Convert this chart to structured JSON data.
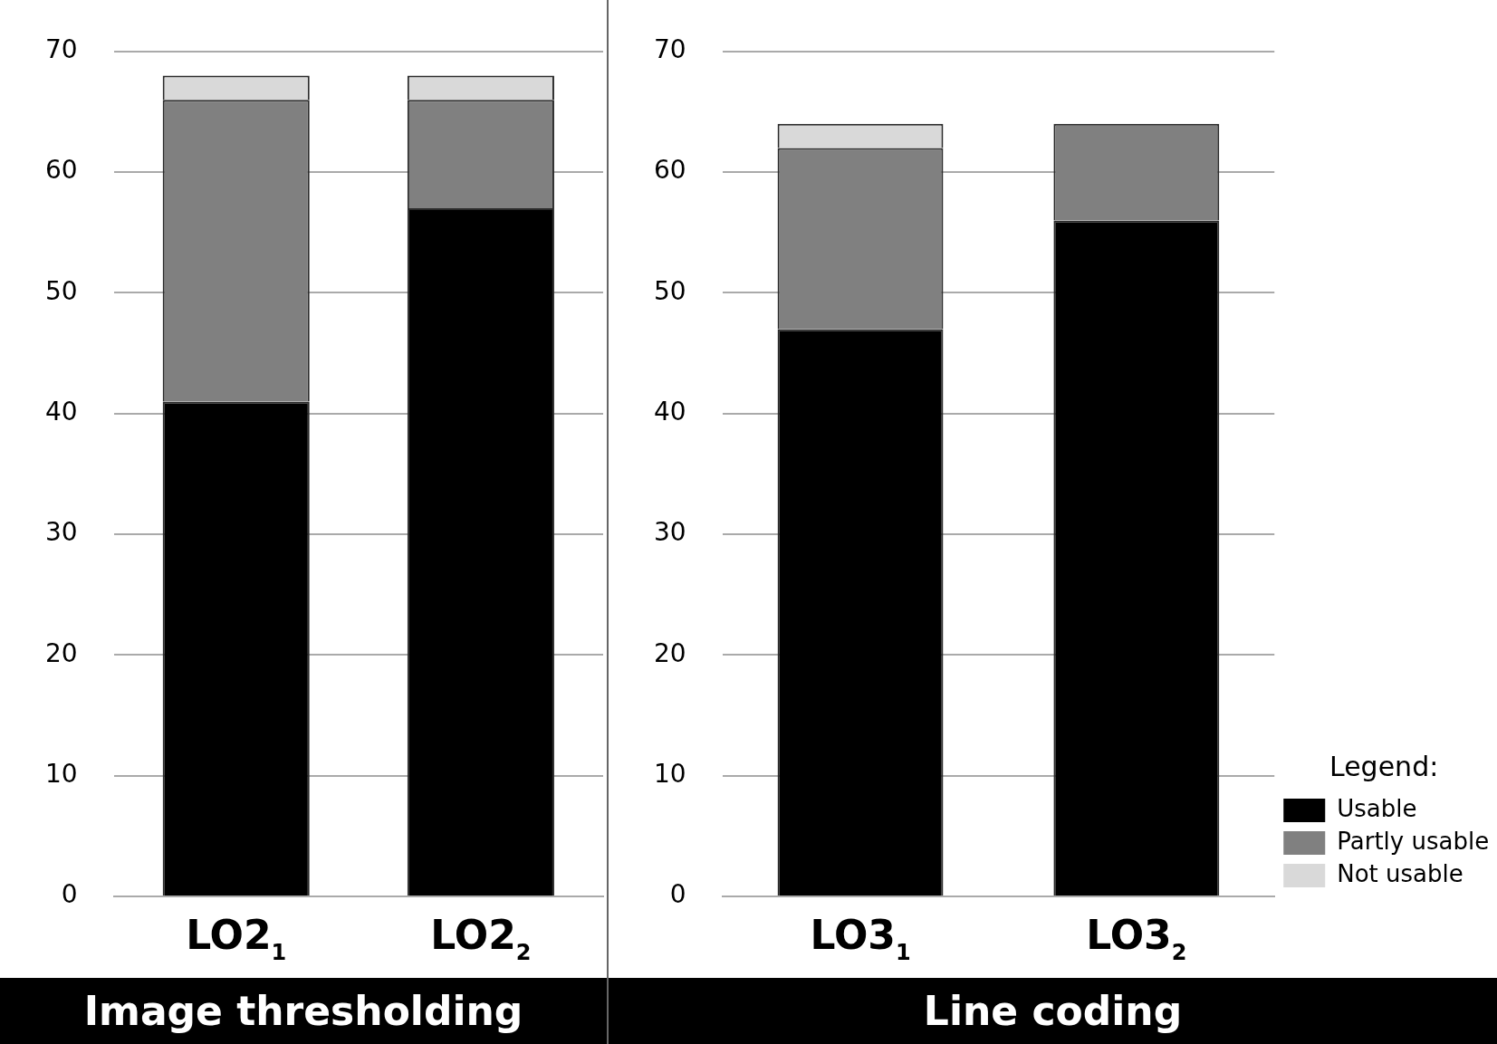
{
  "chart_data": [
    {
      "type": "bar",
      "title": "Image thresholding",
      "categories": [
        "LO2$_{1}$",
        "LO2$_{2}$"
      ],
      "stacked": true,
      "series": [
        {
          "color": "#000000",
          "values": [
            41,
            57
          ]
        },
        {
          "color": "#808080",
          "values": [
            25,
            9
          ]
        },
        {
          "color": "#d9d9d9",
          "values": [
            2,
            2
          ]
        }
      ],
      "ylim": [
        0,
        70
      ],
      "yticks": [
        0,
        10,
        20,
        30,
        40,
        50,
        60,
        70
      ],
      "grid": "y",
      "legend": false
    },
    {
      "type": "bar",
      "title": "Line coding",
      "categories": [
        "LO3$_{1}$",
        "LO3$_{2}$"
      ],
      "stacked": true,
      "series": [
        {
          "name": "Usable",
          "color": "#000000",
          "values": [
            47,
            56
          ]
        },
        {
          "name": "Partly usable",
          "color": "#808080",
          "values": [
            15,
            8
          ]
        },
        {
          "name": "Not usable",
          "color": "#d9d9d9",
          "values": [
            2,
            0
          ]
        }
      ],
      "ylim": [
        0,
        70
      ],
      "yticks": [
        0,
        10,
        20,
        30,
        40,
        50,
        60,
        70
      ],
      "grid": "y",
      "legend": "bottom right",
      "legend_title": "Legend:"
    }
  ]
}
